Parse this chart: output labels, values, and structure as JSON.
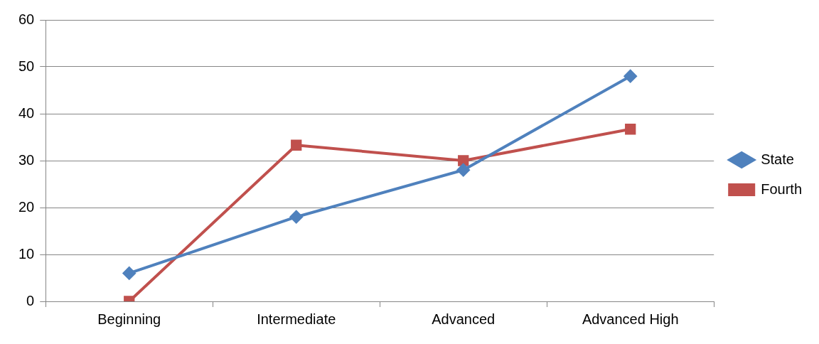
{
  "chart_data": {
    "type": "line",
    "categories": [
      "Beginning",
      "Intermediate",
      "Advanced",
      "Advanced High"
    ],
    "series": [
      {
        "name": "State",
        "color": "#4f81bd",
        "marker": "diamond",
        "values": [
          6,
          18,
          28,
          48
        ]
      },
      {
        "name": "Fourth",
        "color": "#c0504d",
        "marker": "square",
        "values": [
          0,
          33.3,
          30,
          36.7
        ]
      }
    ],
    "ylim": [
      0,
      60
    ],
    "yticks": [
      0,
      10,
      20,
      30,
      40,
      50,
      60
    ],
    "grid": "y",
    "legend": "right",
    "line_style": "solid"
  }
}
